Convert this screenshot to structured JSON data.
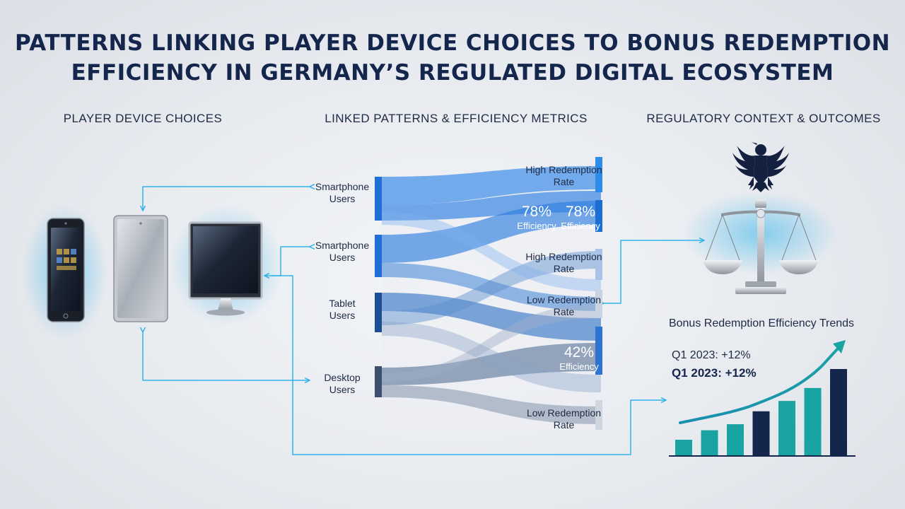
{
  "title": {
    "line1": "PATTERNS LINKING PLAYER DEVICE CHOICES TO BONUS REDEMPTION",
    "line2": "EFFICIENCY IN GERMANY’S REGULATED DIGITAL ECOSYSTEM"
  },
  "columns": {
    "left": "PLAYER DEVICE CHOICES",
    "middle": "LINKED PATTERNS & EFFICIENCY METRICS",
    "right": "REGULATORY CONTEXT & OUTCOMES"
  },
  "sources": [
    {
      "line1": "Smartphone",
      "line2": "Users"
    },
    {
      "line1": "Smartphone",
      "line2": "Users"
    },
    {
      "line1": "Tablet",
      "line2": "Users"
    },
    {
      "line1": "Desktop",
      "line2": "Users"
    }
  ],
  "targets": [
    {
      "line1": "High Redemption",
      "line2": "Rate"
    },
    {
      "line1": "High Redemption",
      "line2": "Rate"
    },
    {
      "line1": "Low Redemption",
      "line2": "Rate"
    },
    {
      "line1": "Low Redemption",
      "line2": "Rate"
    }
  ],
  "metrics": [
    {
      "value": "78%",
      "label": "Efficiency"
    },
    {
      "value": "78%",
      "label": "Efficiency"
    },
    {
      "value": "42%",
      "label": "Efficiency"
    }
  ],
  "trend": {
    "title": "Bonus Redemption Efficiency Trends",
    "note1": "Q1 2023: +12%",
    "note2": "Q1 2023: +12%",
    "bars": [
      0.18,
      0.29,
      0.36,
      0.51,
      0.63,
      0.78,
      1.0
    ]
  },
  "colors": {
    "navy": "#15264d",
    "accent": "#33b3ea",
    "flow_blue": "#2f82e3",
    "teal": "#1aa3a3"
  }
}
